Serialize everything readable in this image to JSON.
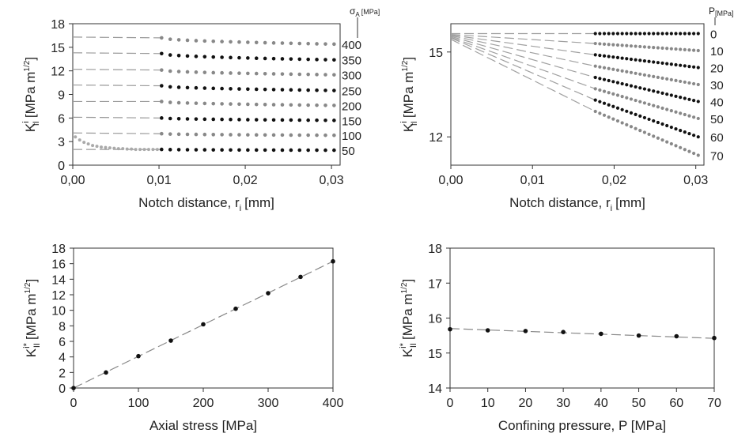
{
  "chart_data": [
    {
      "id": "a",
      "type": "scatter",
      "xlabel": "Notch distance, r",
      "xlabel_sub": "i",
      "xlabel_unit": "[mm]",
      "ylabel": "K",
      "ylabel_sup": "i",
      "ylabel_sub": "II",
      "ylabel_unit": "[MPa m",
      "ylabel_unit_sup": "1/2",
      "ylabel_unit_close": "]",
      "xlim": [
        0,
        0.031
      ],
      "ylim": [
        0,
        18
      ],
      "xticks": [
        0,
        0.01,
        0.02,
        0.03
      ],
      "xtick_labels": [
        "0,00",
        "0,01",
        "0,02",
        "0,03"
      ],
      "yticks": [
        0,
        3,
        6,
        9,
        12,
        15,
        18
      ],
      "ytick_labels": [
        "0",
        "3",
        "6",
        "9",
        "12",
        "15",
        "18"
      ],
      "legend_title": "σ",
      "legend_title_sub": "A",
      "legend_title_unit": "[MPa]",
      "grid": false,
      "series": [
        {
          "name": "400",
          "start": 16.3,
          "near": 16.2,
          "end": 15.4,
          "color": "#888888"
        },
        {
          "name": "350",
          "start": 14.3,
          "near": 14.2,
          "end": 13.4,
          "color": "#111111"
        },
        {
          "name": "300",
          "start": 12.2,
          "near": 12.1,
          "end": 11.5,
          "color": "#888888"
        },
        {
          "name": "250",
          "start": 10.2,
          "near": 10.1,
          "end": 9.5,
          "color": "#111111"
        },
        {
          "name": "200",
          "start": 8.1,
          "near": 8.1,
          "end": 7.6,
          "color": "#888888"
        },
        {
          "name": "150",
          "start": 6.1,
          "near": 6.0,
          "end": 5.7,
          "color": "#111111"
        },
        {
          "name": "100",
          "start": 4.1,
          "near": 4.0,
          "end": 3.8,
          "color": "#888888"
        },
        {
          "name": "50",
          "start": 2.0,
          "near": 2.0,
          "end": 1.9,
          "color": "#111111"
        }
      ],
      "extra_points": {
        "x": [
          0.0003,
          0.0008,
          0.0013,
          0.0018,
          0.0023,
          0.0028,
          0.0033,
          0.0038,
          0.0043,
          0.0048,
          0.0053,
          0.0058,
          0.0063,
          0.0068,
          0.0073,
          0.0078,
          0.0083,
          0.0088,
          0.0093,
          0.0098
        ],
        "y": [
          3.6,
          3.2,
          2.9,
          2.7,
          2.5,
          2.4,
          2.3,
          2.25,
          2.2,
          2.15,
          2.1,
          2.1,
          2.05,
          2.05,
          2.0,
          2.0,
          2.0,
          2.0,
          2.0,
          2.0
        ],
        "color": "#aaaaaa"
      }
    },
    {
      "id": "b",
      "type": "scatter",
      "xlabel": "Notch distance, r",
      "xlabel_sub": "i",
      "xlabel_unit": "[mm]",
      "ylabel": "K",
      "ylabel_sup": "i",
      "ylabel_sub": "II",
      "ylabel_unit": "[MPa m",
      "ylabel_unit_sup": "1/2",
      "ylabel_unit_close": "]",
      "xlim": [
        0,
        0.031
      ],
      "ylim": [
        11.0,
        16.0
      ],
      "xticks": [
        0,
        0.01,
        0.02,
        0.03
      ],
      "xtick_labels": [
        "0,00",
        "0,01",
        "0,02",
        "0,03"
      ],
      "yticks": [
        12,
        15
      ],
      "ytick_labels": [
        "12",
        "15"
      ],
      "legend_title": "P",
      "legend_title_unit": "[MPa]",
      "grid": false,
      "series": [
        {
          "name": "0",
          "start": 15.65,
          "first": 15.65,
          "end": 15.65,
          "color": "#111111"
        },
        {
          "name": "10",
          "start": 15.62,
          "first": 15.3,
          "end": 15.05,
          "color": "#888888"
        },
        {
          "name": "20",
          "start": 15.6,
          "first": 14.9,
          "end": 14.45,
          "color": "#111111"
        },
        {
          "name": "30",
          "start": 15.58,
          "first": 14.5,
          "end": 13.85,
          "color": "#888888"
        },
        {
          "name": "40",
          "start": 15.55,
          "first": 14.1,
          "end": 13.25,
          "color": "#111111"
        },
        {
          "name": "50",
          "start": 15.52,
          "first": 13.7,
          "end": 12.65,
          "color": "#888888"
        },
        {
          "name": "60",
          "start": 15.5,
          "first": 13.3,
          "end": 12.0,
          "color": "#111111"
        },
        {
          "name": "70",
          "start": 15.45,
          "first": 12.9,
          "end": 11.35,
          "color": "#888888"
        }
      ]
    },
    {
      "id": "c",
      "type": "scatter",
      "xlabel": "Axial stress [MPa]",
      "ylabel": "K",
      "ylabel_sup": "i*",
      "ylabel_sub": "II",
      "ylabel_unit": "[MPa m",
      "ylabel_unit_sup": "1/2",
      "ylabel_unit_close": "]",
      "xlim": [
        0,
        400
      ],
      "ylim": [
        0,
        18
      ],
      "xticks": [
        0,
        100,
        200,
        300,
        400
      ],
      "xtick_labels": [
        "0",
        "100",
        "200",
        "300",
        "400"
      ],
      "yticks": [
        0,
        2,
        4,
        6,
        8,
        10,
        12,
        14,
        16,
        18
      ],
      "ytick_labels": [
        "0",
        "2",
        "4",
        "6",
        "8",
        "10",
        "12",
        "14",
        "16",
        "18"
      ],
      "grid": false,
      "x": [
        0,
        50,
        100,
        150,
        200,
        250,
        300,
        350,
        400
      ],
      "y": [
        0,
        2.0,
        4.1,
        6.1,
        8.2,
        10.2,
        12.2,
        14.3,
        16.3
      ],
      "fit": {
        "x": [
          0,
          400
        ],
        "y": [
          0,
          16.3
        ]
      }
    },
    {
      "id": "d",
      "type": "scatter",
      "xlabel": "Confining pressure, P [MPa]",
      "ylabel": "K",
      "ylabel_sup": "i*",
      "ylabel_sub": "II",
      "ylabel_unit": "[MPa m",
      "ylabel_unit_sup": "1/2",
      "ylabel_unit_close": "]",
      "xlim": [
        0,
        70
      ],
      "ylim": [
        14,
        18
      ],
      "xticks": [
        0,
        10,
        20,
        30,
        40,
        50,
        60,
        70
      ],
      "xtick_labels": [
        "0",
        "10",
        "20",
        "30",
        "40",
        "50",
        "60",
        "70"
      ],
      "yticks": [
        14,
        15,
        16,
        17,
        18
      ],
      "ytick_labels": [
        "14",
        "15",
        "16",
        "17",
        "18"
      ],
      "grid": false,
      "x": [
        0,
        10,
        20,
        30,
        40,
        50,
        60,
        70
      ],
      "y": [
        15.68,
        15.65,
        15.63,
        15.6,
        15.55,
        15.5,
        15.48,
        15.43
      ],
      "fit": {
        "x": [
          0,
          70
        ],
        "y": [
          15.7,
          15.42
        ]
      }
    }
  ]
}
